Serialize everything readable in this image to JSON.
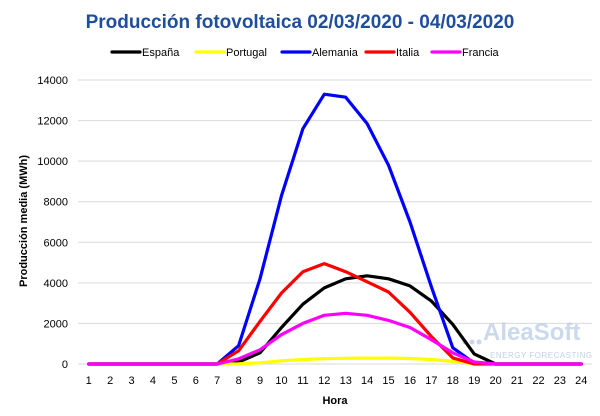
{
  "chart_data": {
    "type": "line",
    "title": "Producción fotovoltaica 02/03/2020 - 04/03/2020",
    "xlabel": "Hora",
    "ylabel": "Producción media (MWh)",
    "x": [
      1,
      2,
      3,
      4,
      5,
      6,
      7,
      8,
      9,
      10,
      11,
      12,
      13,
      14,
      15,
      16,
      17,
      18,
      19,
      20,
      21,
      22,
      23,
      24
    ],
    "ylim": [
      0,
      14000
    ],
    "yticks": [
      0,
      2000,
      4000,
      6000,
      8000,
      10000,
      12000,
      14000
    ],
    "ytick_labels": [
      "0",
      "2000",
      "4000",
      "6000",
      "8000",
      "10000",
      "12000",
      "14000"
    ],
    "grid": "horizontal",
    "legend_position": "top",
    "series": [
      {
        "name": "España",
        "color": "#000000",
        "values": [
          0,
          0,
          0,
          0,
          0,
          0,
          0,
          100,
          550,
          1800,
          2950,
          3750,
          4200,
          4350,
          4200,
          3850,
          3100,
          1950,
          500,
          0,
          0,
          0,
          0,
          0
        ]
      },
      {
        "name": "Portugal",
        "color": "#ffff00",
        "values": [
          0,
          0,
          0,
          0,
          0,
          0,
          0,
          10,
          60,
          160,
          220,
          260,
          280,
          290,
          290,
          270,
          220,
          130,
          20,
          0,
          0,
          0,
          0,
          0
        ]
      },
      {
        "name": "Alemania",
        "color": "#0000ff",
        "values": [
          0,
          0,
          0,
          0,
          0,
          0,
          0,
          900,
          4200,
          8300,
          11600,
          13300,
          13150,
          11850,
          9800,
          7000,
          3800,
          800,
          50,
          0,
          0,
          0,
          0,
          0
        ]
      },
      {
        "name": "Italia",
        "color": "#ff0000",
        "values": [
          0,
          0,
          0,
          0,
          0,
          0,
          0,
          650,
          2100,
          3500,
          4550,
          4950,
          4550,
          4050,
          3550,
          2550,
          1350,
          300,
          0,
          0,
          0,
          0,
          0,
          0
        ]
      },
      {
        "name": "Francia",
        "color": "#ff00ff",
        "values": [
          0,
          0,
          0,
          0,
          0,
          0,
          0,
          250,
          700,
          1450,
          2000,
          2400,
          2500,
          2400,
          2150,
          1800,
          1200,
          550,
          100,
          0,
          0,
          0,
          0,
          0
        ]
      }
    ]
  },
  "watermark": {
    "brand": "AleaSoft",
    "tagline": "ENERGY FORECASTING"
  }
}
